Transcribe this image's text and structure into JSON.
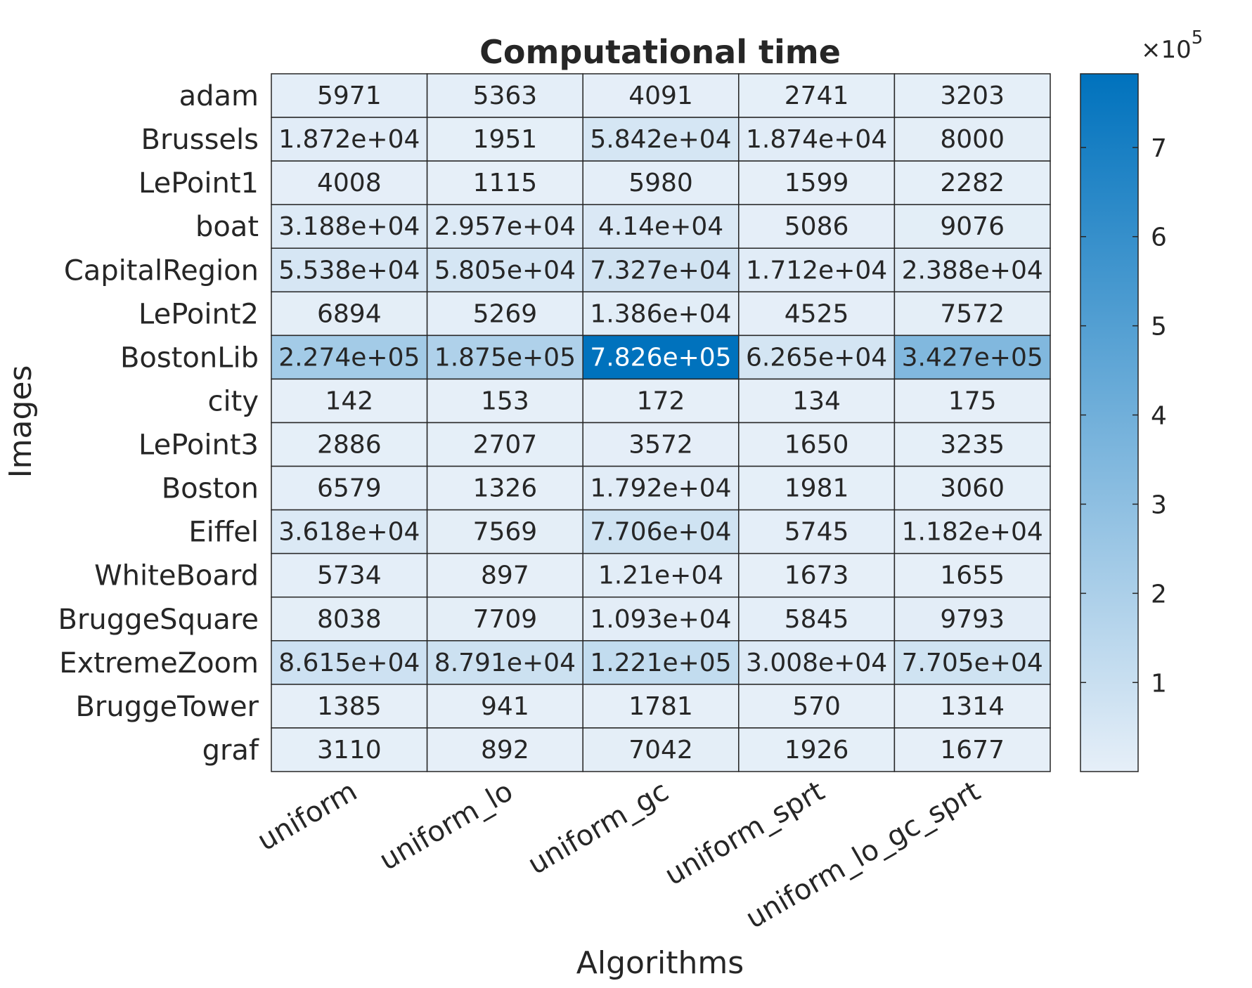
{
  "chart_data": {
    "type": "heatmap",
    "title": "Computational time",
    "xlabel": "Algorithms",
    "ylabel": "Images",
    "columns": [
      "uniform",
      "uniform_lo",
      "uniform_gc",
      "uniform_sprt",
      "uniform_lo_gc_sprt"
    ],
    "rows": [
      "adam",
      "Brussels",
      "LePoint1",
      "boat",
      "CapitalRegion",
      "LePoint2",
      "BostonLib",
      "city",
      "LePoint3",
      "Boston",
      "Eiffel",
      "WhiteBoard",
      "BruggeSquare",
      "ExtremeZoom",
      "BruggeTower",
      "graf"
    ],
    "values": [
      [
        5971,
        5363,
        4091,
        2741,
        3203
      ],
      [
        18720,
        1951,
        58420,
        18740,
        8000
      ],
      [
        4008,
        1115,
        5980,
        1599,
        2282
      ],
      [
        31880,
        29570,
        41400,
        5086,
        9076
      ],
      [
        55380,
        58050,
        73270,
        17120,
        23880
      ],
      [
        6894,
        5269,
        13860,
        4525,
        7572
      ],
      [
        227400,
        187500,
        782600,
        62650,
        342700
      ],
      [
        142,
        153,
        172,
        134,
        175
      ],
      [
        2886,
        2707,
        3572,
        1650,
        3235
      ],
      [
        6579,
        1326,
        17920,
        1981,
        3060
      ],
      [
        36180,
        7569,
        77060,
        5745,
        11820
      ],
      [
        5734,
        897,
        12100,
        1673,
        1655
      ],
      [
        8038,
        7709,
        10930,
        5845,
        9793
      ],
      [
        86150,
        87910,
        122100,
        30080,
        77050
      ],
      [
        1385,
        941,
        1781,
        570,
        1314
      ],
      [
        3110,
        892,
        7042,
        1926,
        1677
      ]
    ],
    "cell_labels": [
      [
        "5971",
        "5363",
        "4091",
        "2741",
        "3203"
      ],
      [
        "1.872e+04",
        "1951",
        "5.842e+04",
        "1.874e+04",
        "8000"
      ],
      [
        "4008",
        "1115",
        "5980",
        "1599",
        "2282"
      ],
      [
        "3.188e+04",
        "2.957e+04",
        "4.14e+04",
        "5086",
        "9076"
      ],
      [
        "5.538e+04",
        "5.805e+04",
        "7.327e+04",
        "1.712e+04",
        "2.388e+04"
      ],
      [
        "6894",
        "5269",
        "1.386e+04",
        "4525",
        "7572"
      ],
      [
        "2.274e+05",
        "1.875e+05",
        "7.826e+05",
        "6.265e+04",
        "3.427e+05"
      ],
      [
        "142",
        "153",
        "172",
        "134",
        "175"
      ],
      [
        "2886",
        "2707",
        "3572",
        "1650",
        "3235"
      ],
      [
        "6579",
        "1326",
        "1.792e+04",
        "1981",
        "3060"
      ],
      [
        "3.618e+04",
        "7569",
        "7.706e+04",
        "5745",
        "1.182e+04"
      ],
      [
        "5734",
        "897",
        "1.21e+04",
        "1673",
        "1655"
      ],
      [
        "8038",
        "7709",
        "1.093e+04",
        "5845",
        "9793"
      ],
      [
        "8.615e+04",
        "8.791e+04",
        "1.221e+05",
        "3.008e+04",
        "7.705e+04"
      ],
      [
        "1385",
        "941",
        "1781",
        "570",
        "1314"
      ],
      [
        "3110",
        "892",
        "7042",
        "1926",
        "1677"
      ]
    ],
    "colorbar": {
      "ticks": [
        1,
        2,
        3,
        4,
        5,
        6,
        7
      ],
      "tick_labels": [
        "1",
        "2",
        "3",
        "4",
        "5",
        "6",
        "7"
      ],
      "exponent_label": "×10",
      "exponent_power": "5",
      "range": [
        134,
        782600
      ],
      "color_low": "#e6eff8",
      "color_high": "#0072bd"
    },
    "grid": true
  }
}
